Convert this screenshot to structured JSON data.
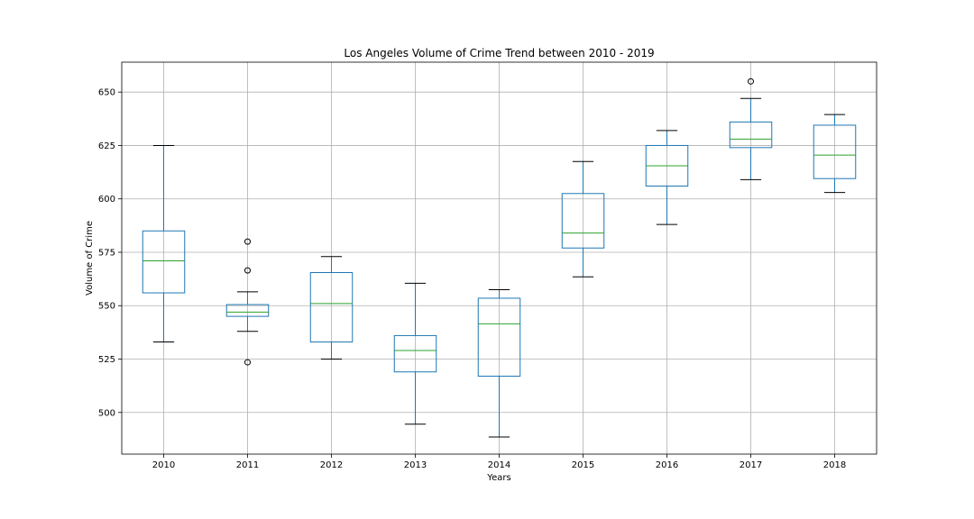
{
  "chart_data": {
    "type": "box",
    "title": "Los Angeles Volume of Crime Trend between 2010 - 2019",
    "xlabel": "Years",
    "ylabel": "Volume of Crime",
    "categories": [
      "2010",
      "2011",
      "2012",
      "2013",
      "2014",
      "2015",
      "2016",
      "2017",
      "2018"
    ],
    "ylim": [
      480.5,
      664
    ],
    "yticks": [
      500,
      525,
      550,
      575,
      600,
      625,
      650
    ],
    "grid": true,
    "series": [
      {
        "category": "2010",
        "whislo": 533,
        "q1": 556,
        "med": 571,
        "q3": 585,
        "whishi": 625,
        "fliers": []
      },
      {
        "category": "2011",
        "whislo": 538,
        "q1": 545,
        "med": 547,
        "q3": 550.5,
        "whishi": 556.5,
        "fliers": [
          580,
          566.5,
          523.5
        ]
      },
      {
        "category": "2012",
        "whislo": 525,
        "q1": 533,
        "med": 551,
        "q3": 565.5,
        "whishi": 573,
        "fliers": []
      },
      {
        "category": "2013",
        "whislo": 494.5,
        "q1": 519,
        "med": 529,
        "q3": 536,
        "whishi": 560.5,
        "fliers": []
      },
      {
        "category": "2014",
        "whislo": 488.5,
        "q1": 517,
        "med": 541.5,
        "q3": 553.5,
        "whishi": 557.5,
        "fliers": []
      },
      {
        "category": "2015",
        "whislo": 563.5,
        "q1": 577,
        "med": 584,
        "q3": 602.5,
        "whishi": 617.5,
        "fliers": []
      },
      {
        "category": "2016",
        "whislo": 588,
        "q1": 606,
        "med": 615.5,
        "q3": 625,
        "whishi": 632,
        "fliers": []
      },
      {
        "category": "2017",
        "whislo": 609,
        "q1": 624,
        "med": 628,
        "q3": 636,
        "whishi": 647,
        "fliers": [
          655
        ]
      },
      {
        "category": "2018",
        "whislo": 603,
        "q1": 609.5,
        "med": 620.5,
        "q3": 634.5,
        "whishi": 639.5,
        "fliers": []
      }
    ]
  }
}
